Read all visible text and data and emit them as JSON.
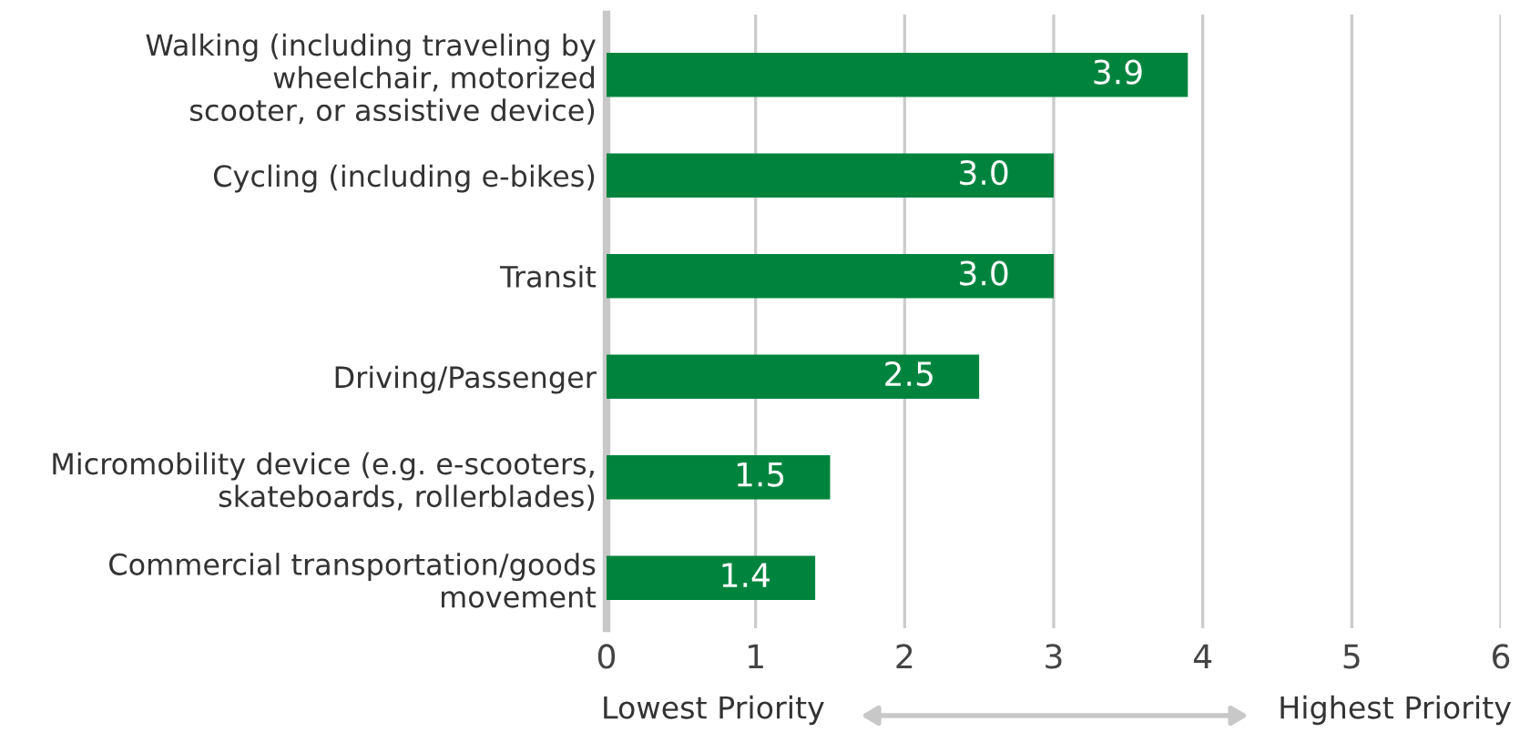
{
  "chart_data": {
    "type": "bar",
    "orientation": "horizontal",
    "categories": [
      "Walking (including traveling by\nwheelchair, motorized\nscooter, or assistive device)",
      "Cycling (including e-bikes)",
      "Transit",
      "Driving/Passenger",
      "Micromobility device (e.g. e-scooters,\nskateboards, rollerblades)",
      "Commercial transportation/goods\nmovement"
    ],
    "values": [
      3.9,
      3.0,
      3.0,
      2.5,
      1.5,
      1.4
    ],
    "color": "#00843d",
    "xlim": [
      0,
      6
    ],
    "xticks": [
      0,
      1,
      2,
      3,
      4,
      5,
      6
    ],
    "value_labels": [
      "3.9",
      "3.0",
      "3.0",
      "2.5",
      "1.5",
      "1.4"
    ],
    "grid": "x",
    "legend": false,
    "annotations": [
      "Lowest Priority",
      "Highest Priority"
    ]
  }
}
